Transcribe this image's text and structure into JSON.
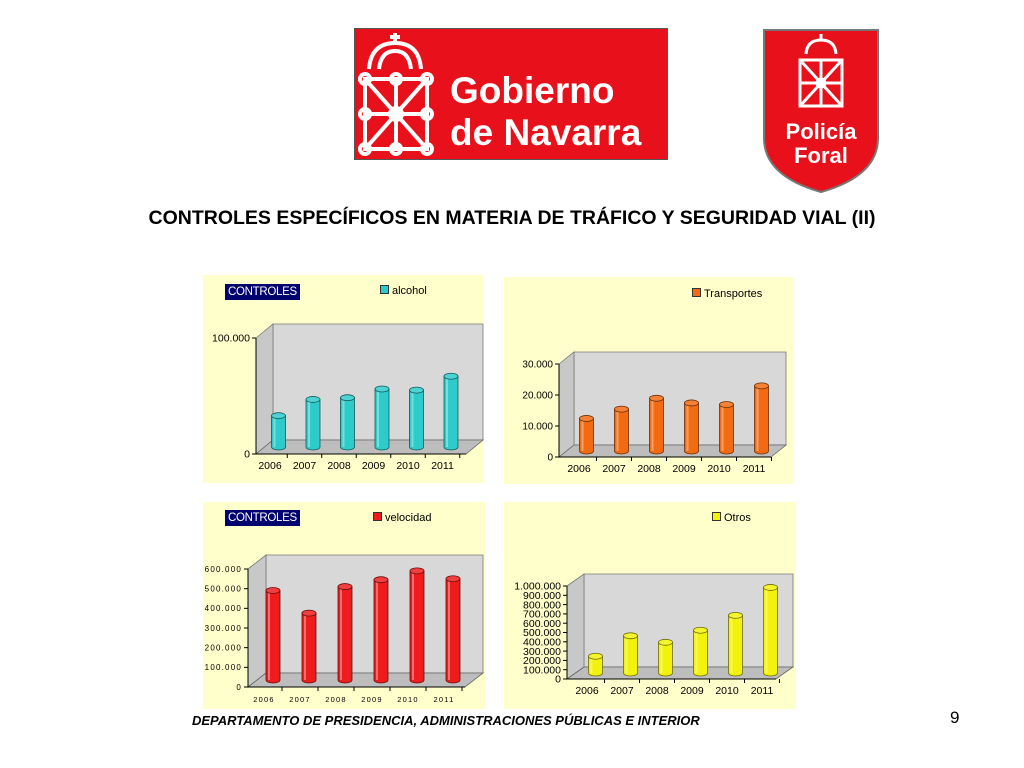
{
  "header": {
    "gov_logo_text": [
      "Gobierno",
      "de Navarra"
    ],
    "police_logo_text": [
      "Policía",
      "Foral"
    ],
    "title": "CONTROLES ESPECÍFICOS EN MATERIA DE TRÁFICO Y SEGURIDAD VIAL (II)"
  },
  "colors": {
    "alcohol": "#2ecbcb",
    "transportes": "#f26b12",
    "velocidad": "#ee1c1c",
    "otros": "#f2f20a",
    "brand_red": "#e8101a",
    "tag_bg": "#00006e"
  },
  "charts": [
    {
      "tag": "CONTROLES",
      "legend": "alcohol"
    },
    {
      "tag": "",
      "legend": "Transportes"
    },
    {
      "tag": "CONTROLES",
      "legend": "velocidad"
    },
    {
      "tag": "",
      "legend": "Otros"
    }
  ],
  "chart_data": [
    {
      "type": "bar",
      "categories": [
        "2006",
        "2007",
        "2008",
        "2009",
        "2010",
        "2011"
      ],
      "series": [
        {
          "name": "alcohol",
          "values": [
            27000,
            41000,
            42500,
            50000,
            49000,
            61000
          ]
        }
      ],
      "ylim": [
        0,
        100000
      ],
      "yticks": [
        "0",
        "100.000"
      ],
      "yticks_values": [
        0,
        100000
      ]
    },
    {
      "type": "bar",
      "categories": [
        "2006",
        "2007",
        "2008",
        "2009",
        "2010",
        "2011"
      ],
      "series": [
        {
          "name": "Transportes",
          "values": [
            10500,
            13500,
            17000,
            15500,
            15000,
            21000
          ]
        }
      ],
      "ylim": [
        0,
        30000
      ],
      "yticks": [
        "0",
        "10.000",
        "20.000",
        "30.000"
      ],
      "yticks_values": [
        0,
        10000,
        20000,
        30000
      ]
    },
    {
      "type": "bar",
      "categories": [
        "2006",
        "2007",
        "2008",
        "2009",
        "2010",
        "2011"
      ],
      "series": [
        {
          "name": "velocidad",
          "values": [
            455000,
            340000,
            475000,
            510000,
            555000,
            515000
          ]
        }
      ],
      "ylim": [
        0,
        600000
      ],
      "yticks": [
        "0",
        "100.000",
        "200.000",
        "300.000",
        "400.000",
        "500.000",
        "600.000"
      ],
      "yticks_values": [
        0,
        100000,
        200000,
        300000,
        400000,
        500000,
        600000
      ]
    },
    {
      "type": "bar",
      "categories": [
        "2006",
        "2007",
        "2008",
        "2009",
        "2010",
        "2011"
      ],
      "series": [
        {
          "name": "Otros",
          "values": [
            180000,
            400000,
            330000,
            460000,
            620000,
            920000
          ]
        }
      ],
      "ylim": [
        0,
        1000000
      ],
      "yticks": [
        "0",
        "100.000",
        "200.000",
        "300.000",
        "400.000",
        "500.000",
        "600.000",
        "700.000",
        "800.000",
        "900.000",
        "1.000.000"
      ],
      "yticks_values": [
        0,
        100000,
        200000,
        300000,
        400000,
        500000,
        600000,
        700000,
        800000,
        900000,
        1000000
      ]
    }
  ],
  "footer": {
    "department": "DEPARTAMENTO DE PRESIDENCIA, ADMINISTRACIONES PÚBLICAS E INTERIOR",
    "page_number": "9"
  }
}
